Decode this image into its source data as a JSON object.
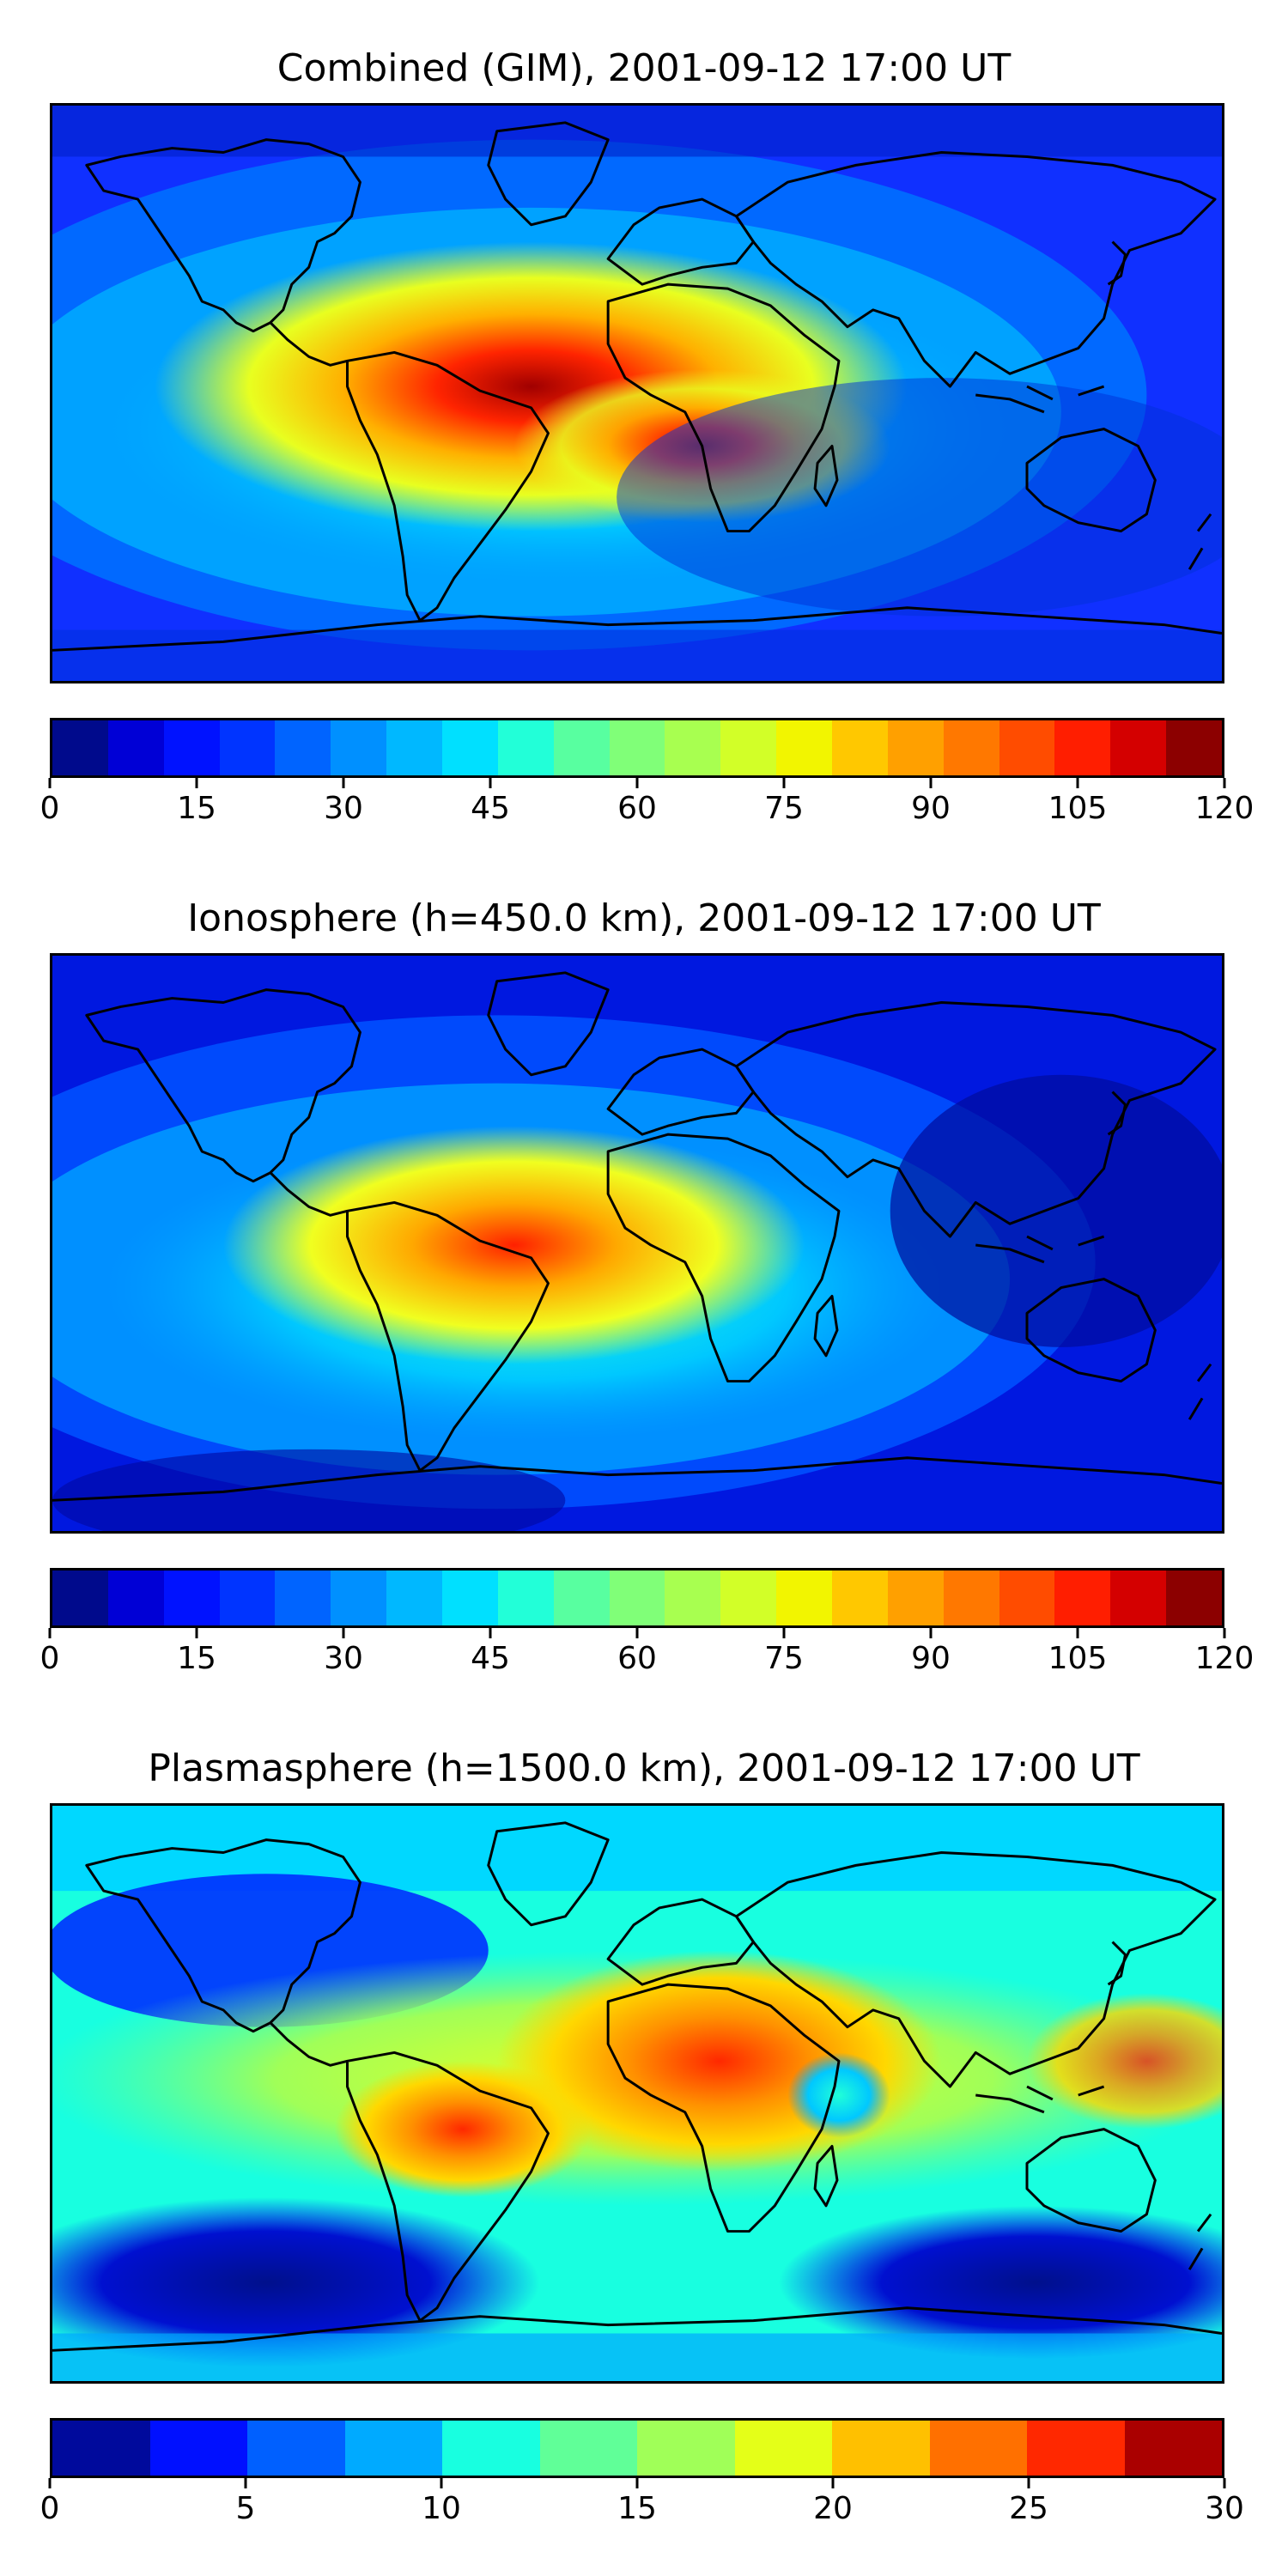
{
  "panels": [
    {
      "title": "Combined (GIM), 2001-09-12 17:00 UT",
      "colorbar": {
        "ticks": [
          "0",
          "15",
          "30",
          "45",
          "60",
          "75",
          "90",
          "105",
          "120"
        ],
        "colors": [
          "#000a8c",
          "#0000d6",
          "#0012ff",
          "#0034ff",
          "#0064ff",
          "#0090ff",
          "#00b8ff",
          "#00e0ff",
          "#22ffd8",
          "#58ffa0",
          "#80ff78",
          "#a8ff50",
          "#d2ff28",
          "#f2f500",
          "#ffc800",
          "#ffa000",
          "#ff7800",
          "#ff4c00",
          "#ff1e00",
          "#d40000",
          "#8c0000"
        ]
      }
    },
    {
      "title": "Ionosphere  (h=450.0 km), 2001-09-12 17:00 UT",
      "colorbar": {
        "ticks": [
          "0",
          "15",
          "30",
          "45",
          "60",
          "75",
          "90",
          "105",
          "120"
        ],
        "colors": [
          "#000a8c",
          "#0000d6",
          "#0012ff",
          "#0034ff",
          "#0064ff",
          "#0090ff",
          "#00b8ff",
          "#00e0ff",
          "#22ffd8",
          "#58ffa0",
          "#80ff78",
          "#a8ff50",
          "#d2ff28",
          "#f2f500",
          "#ffc800",
          "#ffa000",
          "#ff7800",
          "#ff4c00",
          "#ff1e00",
          "#d40000",
          "#8c0000"
        ]
      }
    },
    {
      "title": "Plasmasphere (h=1500.0 km), 2001-09-12 17:00 UT",
      "colorbar": {
        "ticks": [
          "0",
          "5",
          "10",
          "15",
          "20",
          "25",
          "30"
        ],
        "colors": [
          "#000a9c",
          "#0010ff",
          "#0060ff",
          "#00aaff",
          "#18ffe0",
          "#60ff98",
          "#a0ff58",
          "#e4ff18",
          "#ffc000",
          "#ff7000",
          "#ff2800",
          "#aa0000"
        ]
      }
    }
  ]
}
